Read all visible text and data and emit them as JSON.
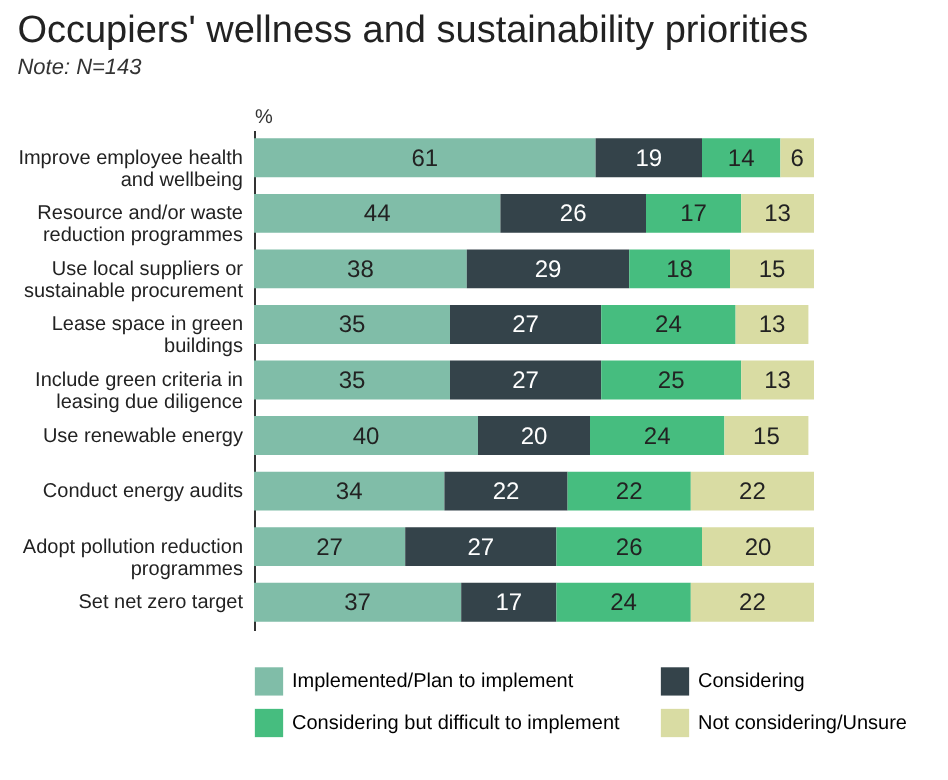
{
  "chart_data": {
    "type": "bar",
    "orientation": "horizontal",
    "stacked": true,
    "title": "Occupiers' wellness and sustainability priorities",
    "xlabel": "%",
    "categories": [
      "Improve employee health and wellbeing",
      "Resource and/or waste reduction programmes",
      "Use local suppliers or sustainable procurement",
      "Lease space in green buildings",
      "Include green criteria in leasing due diligence",
      "Use renewable energy",
      "Conduct energy audits",
      "Adopt pollution reduction programmes",
      "Set net zero target"
    ],
    "series": [
      {
        "name": "Implemented/Plan to implement",
        "color": "#80bda8",
        "values": [
          61,
          44,
          38,
          35,
          35,
          40,
          34,
          27,
          37
        ]
      },
      {
        "name": "Considering",
        "color": "#34434a",
        "values": [
          19,
          26,
          29,
          27,
          27,
          20,
          22,
          27,
          17
        ]
      },
      {
        "name": "Considering but difficult to implement",
        "color": "#46bd7f",
        "values": [
          14,
          17,
          18,
          24,
          25,
          24,
          22,
          26,
          24
        ]
      },
      {
        "name": "Not considering/Unsure",
        "color": "#d9dca3",
        "values": [
          6,
          13,
          15,
          13,
          13,
          15,
          22,
          20,
          22
        ]
      }
    ],
    "xlim": [
      0,
      100
    ],
    "tick_labels": "y",
    "data_labels": true,
    "legend": "bottom",
    "grid": false,
    "annotations": [
      "Note: N=143"
    ]
  }
}
